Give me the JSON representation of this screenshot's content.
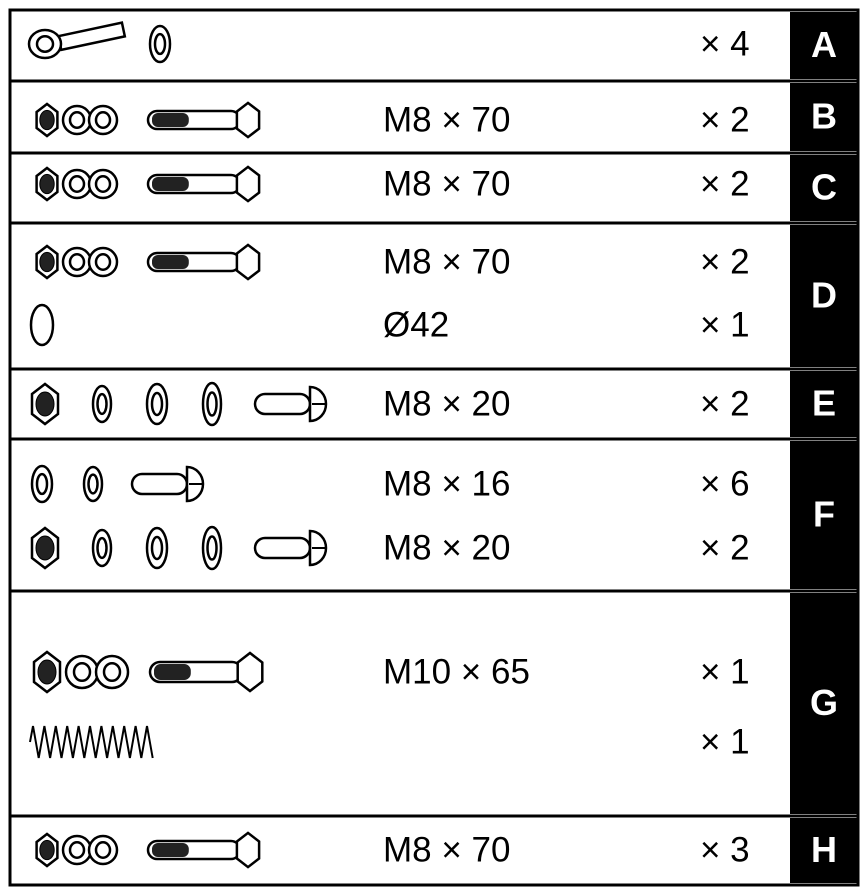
{
  "rows": [
    {
      "label": "A",
      "items": [
        {
          "quantity": "× 4"
        }
      ]
    },
    {
      "label": "B",
      "items": [
        {
          "spec": "M8 × 70",
          "quantity": "× 2"
        }
      ]
    },
    {
      "label": "C",
      "items": [
        {
          "spec": "M8 × 70",
          "quantity": "× 2"
        }
      ]
    },
    {
      "label": "D",
      "items": [
        {
          "spec": "M8 × 70",
          "quantity": "× 2"
        },
        {
          "spec": "Ø42",
          "quantity": "× 1"
        }
      ]
    },
    {
      "label": "E",
      "items": [
        {
          "spec": "M8 × 20",
          "quantity": "× 2"
        }
      ]
    },
    {
      "label": "F",
      "items": [
        {
          "spec": "M8 × 16",
          "quantity": "× 6"
        },
        {
          "spec": "M8 × 20",
          "quantity": "× 2"
        }
      ]
    },
    {
      "label": "G",
      "items": [
        {
          "spec": "M10 × 65",
          "quantity": "× 1"
        },
        {
          "quantity": "× 1"
        }
      ]
    },
    {
      "label": "H",
      "items": [
        {
          "spec": "M8 × 70",
          "quantity": "× 3"
        }
      ]
    }
  ]
}
